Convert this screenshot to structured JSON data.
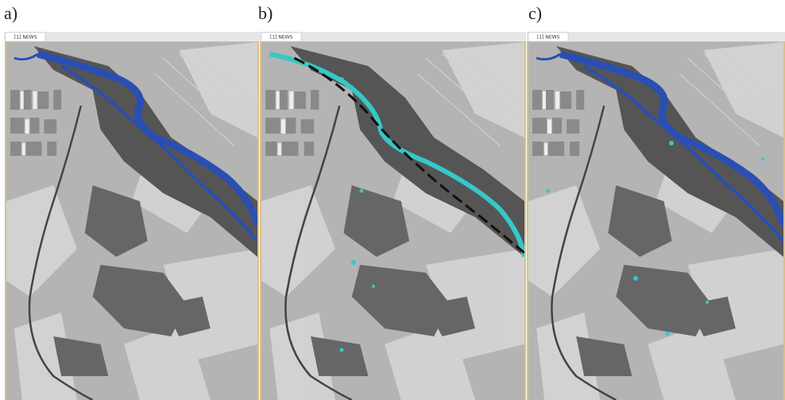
{
  "panels": [
    {
      "label": "a)",
      "tab": "[1] NEWS"
    },
    {
      "label": "b)",
      "tab": "[1] NEWS"
    },
    {
      "label": "c)",
      "tab": "[1] NEWS"
    }
  ]
}
